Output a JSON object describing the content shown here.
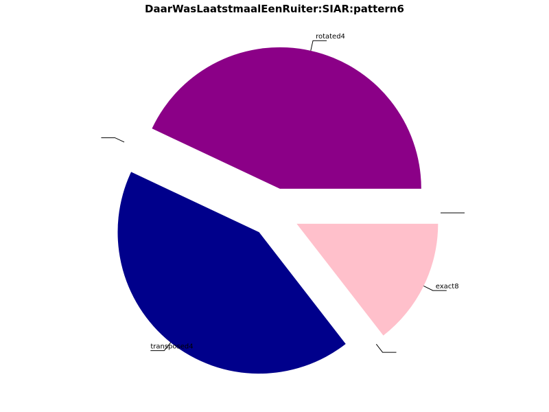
{
  "chart_data": {
    "type": "pie",
    "title": "DaarWasLaatstmaalEenRuiter:SIAR:pattern6",
    "slices": [
      {
        "label": "rotated4",
        "value": 43.0,
        "color": "#8b0087",
        "exploded": true
      },
      {
        "label": "",
        "value": 0.0,
        "color": "#000000",
        "exploded": true
      },
      {
        "label": "transposed4",
        "value": 42.5,
        "color": "#00008b",
        "exploded": true
      },
      {
        "label": "",
        "value": 0.0,
        "color": "#000000",
        "exploded": true
      },
      {
        "label": "exact8",
        "value": 14.5,
        "color": "#ffc0cb",
        "exploded": true
      },
      {
        "label": "",
        "value": 0.0,
        "color": "#000000",
        "exploded": true
      }
    ],
    "start_angle_deg": 0,
    "direction": "counterclockwise",
    "legend": "none"
  }
}
